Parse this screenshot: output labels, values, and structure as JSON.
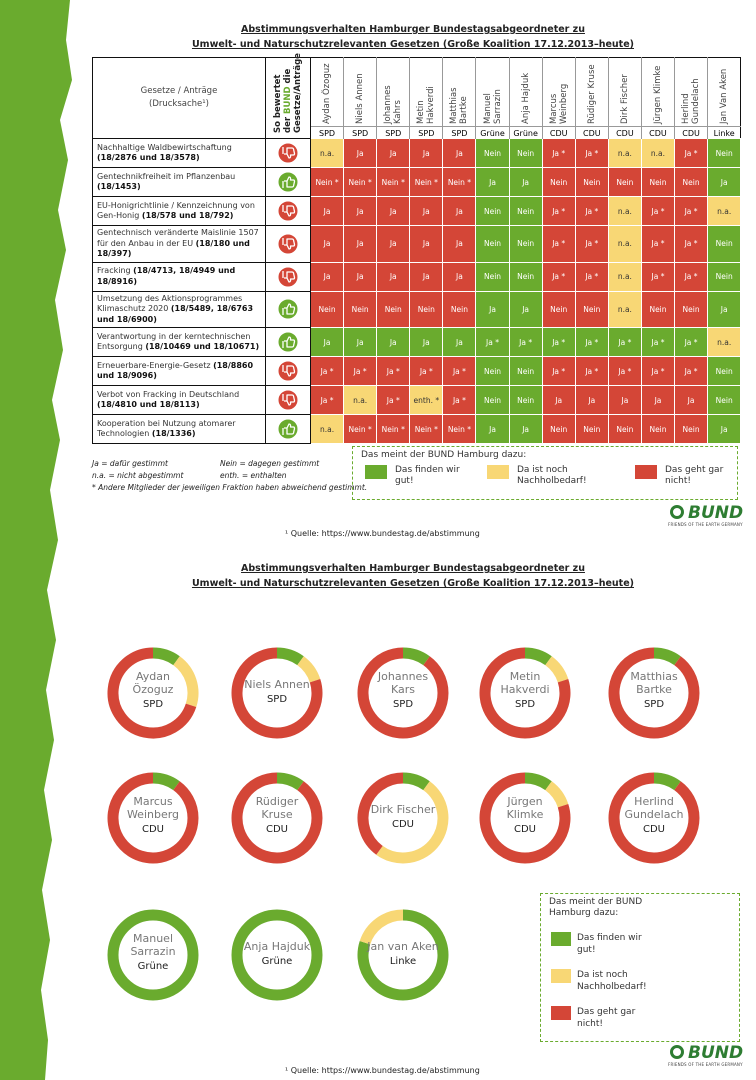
{
  "top": {
    "title_lines": [
      "Abstimmungsverhalten Hamburger Bundestagsabgeordneter zu",
      "Umwelt- und Naturschutzrelevanten Gesetzen (Große Koalition 17.12.2013–heute)"
    ],
    "law_header": "Gesetze / Anträge",
    "doc_header": "(Drucksache¹)",
    "bund_header": [
      "So bewertet der",
      "BUND",
      "die",
      "Gesetze/Anträge"
    ],
    "members": [
      {
        "name": "Aydan Özoguz",
        "party": "SPD"
      },
      {
        "name": "Niels Annen",
        "party": "SPD"
      },
      {
        "name": "Johannes Kahrs",
        "party": "SPD"
      },
      {
        "name": "Metin Hakverdi",
        "party": "SPD"
      },
      {
        "name": "Matthias Bartke",
        "party": "SPD"
      },
      {
        "name": "Manuel Sarrazin",
        "party": "Grüne"
      },
      {
        "name": "Anja Hajduk",
        "party": "Grüne"
      },
      {
        "name": "Marcus Weinberg",
        "party": "CDU"
      },
      {
        "name": "Rüdiger Kruse",
        "party": "CDU"
      },
      {
        "name": "Dirk Fischer",
        "party": "CDU"
      },
      {
        "name": "Jürgen Klimke",
        "party": "CDU"
      },
      {
        "name": "Herlind Gundelach",
        "party": "CDU"
      },
      {
        "name": "Jan Van Aken",
        "party": "Linke"
      }
    ],
    "rows": [
      {
        "law": "Nachhaltige Waldbewirtschaftung",
        "docs": "(18/2876 und 18/3578)",
        "bund_color": "#d44637",
        "cells": [
          "n.a.",
          "Ja",
          "Ja",
          "Ja",
          "Ja",
          "Nein",
          "Nein",
          "Ja *",
          "Ja *",
          "n.a.",
          "n.a.",
          "Ja *",
          "Nein"
        ],
        "colors": [
          "#f8d775",
          "#d44637",
          "#d44637",
          "#d44637",
          "#d44637",
          "#6aab2e",
          "#6aab2e",
          "#d44637",
          "#d44637",
          "#f8d775",
          "#f8d775",
          "#d44637",
          "#6aab2e"
        ]
      },
      {
        "law": "Gentechnikfreiheit im Pflanzenbau",
        "docs": "(18/1453)",
        "bund_color": "#6aab2e",
        "cells": [
          "Nein *",
          "Nein *",
          "Nein *",
          "Nein *",
          "Nein *",
          "Ja",
          "Ja",
          "Nein",
          "Nein",
          "Nein",
          "Nein",
          "Nein",
          "Ja"
        ],
        "colors": [
          "#d44637",
          "#d44637",
          "#d44637",
          "#d44637",
          "#d44637",
          "#6aab2e",
          "#6aab2e",
          "#d44637",
          "#d44637",
          "#d44637",
          "#d44637",
          "#d44637",
          "#6aab2e"
        ]
      },
      {
        "law": "EU-Honigrichtlinie / Kennzeichnung von Gen-Honig",
        "docs": "(18/578 und 18/792)",
        "bund_color": "#d44637",
        "cells": [
          "Ja",
          "Ja",
          "Ja",
          "Ja",
          "Ja",
          "Nein",
          "Nein",
          "Ja *",
          "Ja *",
          "n.a.",
          "Ja *",
          "Ja *",
          "n.a."
        ],
        "colors": [
          "#d44637",
          "#d44637",
          "#d44637",
          "#d44637",
          "#d44637",
          "#6aab2e",
          "#6aab2e",
          "#d44637",
          "#d44637",
          "#f8d775",
          "#d44637",
          "#d44637",
          "#f8d775"
        ]
      },
      {
        "law": "Gentechnisch veränderte Maislinie 1507 für den Anbau in der EU",
        "docs": "(18/180 und 18/397)",
        "bund_color": "#d44637",
        "cells": [
          "Ja",
          "Ja",
          "Ja",
          "Ja",
          "Ja",
          "Nein",
          "Nein",
          "Ja *",
          "Ja *",
          "n.a.",
          "Ja *",
          "Ja *",
          "Nein"
        ],
        "colors": [
          "#d44637",
          "#d44637",
          "#d44637",
          "#d44637",
          "#d44637",
          "#6aab2e",
          "#6aab2e",
          "#d44637",
          "#d44637",
          "#f8d775",
          "#d44637",
          "#d44637",
          "#6aab2e"
        ]
      },
      {
        "law": "Fracking",
        "docs": "(18/4713, 18/4949 und 18/8916)",
        "bund_color": "#d44637",
        "cells": [
          "Ja",
          "Ja",
          "Ja",
          "Ja",
          "Ja",
          "Nein",
          "Nein",
          "Ja *",
          "Ja *",
          "n.a.",
          "Ja *",
          "Ja *",
          "Nein"
        ],
        "colors": [
          "#d44637",
          "#d44637",
          "#d44637",
          "#d44637",
          "#d44637",
          "#6aab2e",
          "#6aab2e",
          "#d44637",
          "#d44637",
          "#f8d775",
          "#d44637",
          "#d44637",
          "#6aab2e"
        ]
      },
      {
        "law": "Umsetzung des Aktionsprogrammes Klimaschutz 2020",
        "docs": "(18/5489, 18/6763 und 18/6900)",
        "bund_color": "#6aab2e",
        "cells": [
          "Nein",
          "Nein",
          "Nein",
          "Nein",
          "Nein",
          "Ja",
          "Ja",
          "Nein",
          "Nein",
          "n.a.",
          "Nein",
          "Nein",
          "Ja"
        ],
        "colors": [
          "#d44637",
          "#d44637",
          "#d44637",
          "#d44637",
          "#d44637",
          "#6aab2e",
          "#6aab2e",
          "#d44637",
          "#d44637",
          "#f8d775",
          "#d44637",
          "#d44637",
          "#6aab2e"
        ]
      },
      {
        "law": "Verantwortung in der kerntechnischen Entsorgung",
        "docs": "(18/10469 und 18/10671)",
        "bund_color": "#6aab2e",
        "cells": [
          "Ja",
          "Ja",
          "Ja",
          "Ja",
          "Ja",
          "Ja *",
          "Ja *",
          "Ja *",
          "Ja *",
          "Ja *",
          "Ja *",
          "Ja *",
          "n.a."
        ],
        "colors": [
          "#6aab2e",
          "#6aab2e",
          "#6aab2e",
          "#6aab2e",
          "#6aab2e",
          "#6aab2e",
          "#6aab2e",
          "#6aab2e",
          "#6aab2e",
          "#6aab2e",
          "#6aab2e",
          "#6aab2e",
          "#f8d775"
        ]
      },
      {
        "law": "Erneuerbare-Energie-Gesetz",
        "docs": "(18/8860 und 18/9096)",
        "bund_color": "#d44637",
        "cells": [
          "Ja *",
          "Ja *",
          "Ja *",
          "Ja *",
          "Ja *",
          "Nein",
          "Nein",
          "Ja *",
          "Ja *",
          "Ja *",
          "Ja *",
          "Ja *",
          "Nein"
        ],
        "colors": [
          "#d44637",
          "#d44637",
          "#d44637",
          "#d44637",
          "#d44637",
          "#6aab2e",
          "#6aab2e",
          "#d44637",
          "#d44637",
          "#d44637",
          "#d44637",
          "#d44637",
          "#6aab2e"
        ]
      },
      {
        "law": "Verbot von Fracking in Deutschland",
        "docs": "(18/4810 und 18/8113)",
        "bund_color": "#d44637",
        "cells": [
          "Ja *",
          "n.a.",
          "Ja *",
          "enth. *",
          "Ja *",
          "Nein",
          "Nein",
          "Ja",
          "Ja",
          "Ja",
          "Ja",
          "Ja",
          "Nein"
        ],
        "colors": [
          "#d44637",
          "#f8d775",
          "#d44637",
          "#f8d775",
          "#d44637",
          "#6aab2e",
          "#6aab2e",
          "#d44637",
          "#d44637",
          "#d44637",
          "#d44637",
          "#d44637",
          "#6aab2e"
        ]
      },
      {
        "law": "Kooperation bei Nutzung atomarer Technologien",
        "docs": "(18/1336)",
        "bund_color": "#6aab2e",
        "cells": [
          "n.a.",
          "Nein *",
          "Nein *",
          "Nein *",
          "Nein *",
          "Ja",
          "Ja",
          "Nein",
          "Nein",
          "Nein",
          "Nein",
          "Nein",
          "Ja"
        ],
        "colors": [
          "#f8d775",
          "#d44637",
          "#d44637",
          "#d44637",
          "#d44637",
          "#6aab2e",
          "#6aab2e",
          "#d44637",
          "#d44637",
          "#d44637",
          "#d44637",
          "#d44637",
          "#6aab2e"
        ]
      }
    ],
    "key": [
      "Ja =  dafür gestimmt",
      "Nein =  dagegen gestimmt",
      "n.a. = nicht abgestimmt",
      "enth. = enthalten",
      "* Andere Mitglieder der jeweiligen Fraktion haben abweichend gestimmt."
    ],
    "source": "¹ Quelle: https://www.bundestag.de/abstimmung"
  },
  "legend": {
    "title": "Das meint der BUND Hamburg dazu:",
    "items": [
      {
        "label": "Das finden wir gut!",
        "color": "#6aab2e"
      },
      {
        "label": "Da ist noch Nachholbedarf!",
        "color": "#f8d775"
      },
      {
        "label": "Das geht gar nicht!",
        "color": "#d44637"
      }
    ]
  },
  "bottom": {
    "title_lines": [
      "Abstimmungsverhalten Hamburger Bundestagsabgeordneter zu",
      "Umwelt- und Naturschutzrelevanten Gesetzen (Große Koalition 17.12.2013–heute)"
    ],
    "donuts": [
      {
        "name_lines": [
          "Aydan",
          "Özoguz"
        ],
        "party": "SPD",
        "values": [
          1,
          2,
          7
        ]
      },
      {
        "name_lines": [
          "Niels Annen"
        ],
        "party": "SPD",
        "values": [
          1,
          1,
          8
        ]
      },
      {
        "name_lines": [
          "Johannes",
          "Kars"
        ],
        "party": "SPD",
        "values": [
          1,
          0,
          9
        ]
      },
      {
        "name_lines": [
          "Metin",
          "Hakverdi"
        ],
        "party": "SPD",
        "values": [
          1,
          1,
          8
        ]
      },
      {
        "name_lines": [
          "Matthias",
          "Bartke"
        ],
        "party": "SPD",
        "values": [
          1,
          0,
          9
        ]
      },
      {
        "name_lines": [
          "Marcus",
          "Weinberg"
        ],
        "party": "CDU",
        "values": [
          1,
          0,
          9
        ]
      },
      {
        "name_lines": [
          "Rüdiger",
          "Kruse"
        ],
        "party": "CDU",
        "values": [
          1,
          0,
          9
        ]
      },
      {
        "name_lines": [
          "Dirk Fischer"
        ],
        "party": "CDU",
        "values": [
          1,
          5,
          4
        ]
      },
      {
        "name_lines": [
          "Jürgen",
          "Klimke"
        ],
        "party": "CDU",
        "values": [
          1,
          1,
          8
        ]
      },
      {
        "name_lines": [
          "Herlind",
          "Gundelach"
        ],
        "party": "CDU",
        "values": [
          1,
          0,
          9
        ]
      },
      {
        "name_lines": [
          "Manuel",
          "Sarrazin"
        ],
        "party": "Grüne",
        "values": [
          10,
          0,
          0
        ]
      },
      {
        "name_lines": [
          "Anja Hajduk"
        ],
        "party": "Grüne",
        "values": [
          10,
          0,
          0
        ]
      },
      {
        "name_lines": [
          "Jan van Aken"
        ],
        "party": "Linke",
        "values": [
          8,
          2,
          0
        ]
      }
    ],
    "source": "¹ Quelle: https://www.bundestag.de/abstimmung"
  },
  "logo": {
    "name": "BUND",
    "tagline": "FRIENDS OF THE EARTH GERMANY"
  }
}
